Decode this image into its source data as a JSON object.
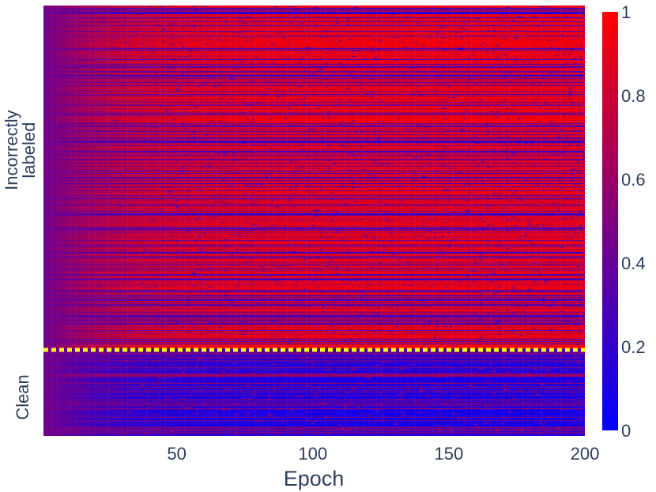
{
  "chart_data": {
    "type": "heatmap",
    "title": "",
    "xlabel": "Epoch",
    "ylabel": "",
    "x_range": [
      1,
      200
    ],
    "x_ticks": [
      50,
      100,
      150,
      200
    ],
    "x_tick_labels": [
      "50",
      "100",
      "150",
      "200"
    ],
    "groups": [
      {
        "label": "Incorrectly labeled",
        "label_lines": [
          "Incorrectly",
          "labeled"
        ],
        "position": "top"
      },
      {
        "label": "Clean",
        "label_lines": [
          "Clean"
        ],
        "position": "bottom"
      }
    ],
    "row_fraction_incorrect": 0.8,
    "separator_color": "#ffff00",
    "colorscale": [
      [
        0,
        "#0000ff"
      ],
      [
        1,
        "#ff0000"
      ]
    ],
    "zmin": 0,
    "zmax": 1,
    "colorbar_ticks": [
      0,
      0.2,
      0.4,
      0.6,
      0.8,
      1
    ],
    "colorbar_tick_labels": [
      "0",
      "0.2",
      "0.4",
      "0.6",
      "0.8",
      "1"
    ],
    "start_value": 0.45,
    "incorrect_final_mean": 0.78,
    "clean_final_mean": 0.2
  }
}
